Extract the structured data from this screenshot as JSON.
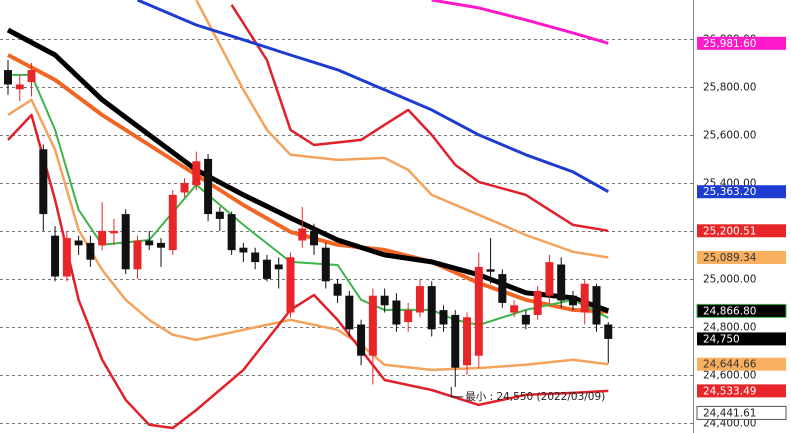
{
  "chart_data": {
    "type": "candlestick",
    "candles": {
      "open": [
        25870,
        25790,
        25820,
        25540,
        25180,
        25010,
        25160,
        25150,
        25140,
        25190,
        25270,
        25040,
        25160,
        25150,
        25120,
        25360,
        25390,
        25500,
        25280,
        25270,
        25130,
        25110,
        25080,
        25060,
        24860,
        25160,
        25200,
        25130,
        24980,
        24930,
        24810,
        24680,
        24930,
        24910,
        24820,
        24860,
        24970,
        24870,
        24850,
        24640,
        24680,
        25040,
        25020,
        24860,
        24850,
        24850,
        24930,
        25060,
        24930,
        24860,
        24970,
        24810
      ],
      "high": [
        25912,
        25850,
        25900,
        25560,
        25220,
        25200,
        25180,
        25180,
        25320,
        25250,
        25290,
        25180,
        25200,
        25170,
        25370,
        25420,
        25530,
        25520,
        25300,
        25280,
        25150,
        25130,
        25100,
        25090,
        25110,
        25300,
        25230,
        25150,
        25000,
        24950,
        24830,
        24960,
        24960,
        24940,
        24900,
        25000,
        24990,
        24890,
        24870,
        24860,
        25110,
        25170,
        25040,
        24910,
        24870,
        24970,
        25100,
        25090,
        24950,
        25000,
        24980,
        24820
      ],
      "low": [
        25767,
        25740,
        25760,
        25200,
        24990,
        24990,
        25100,
        25050,
        25120,
        25140,
        25020,
        25000,
        25120,
        25050,
        25100,
        25340,
        25370,
        25240,
        25200,
        25100,
        25070,
        25040,
        24990,
        24960,
        24840,
        25130,
        25100,
        24960,
        24900,
        24760,
        24640,
        24560,
        24860,
        24780,
        24780,
        24840,
        24760,
        24780,
        24550,
        24600,
        24630,
        24980,
        24880,
        24840,
        24790,
        24830,
        24900,
        24880,
        24870,
        24810,
        24780,
        24650
      ],
      "close": [
        25810,
        25810,
        25870,
        25270,
        25010,
        25170,
        25140,
        25080,
        25200,
        25200,
        25040,
        25160,
        25140,
        25130,
        25350,
        25400,
        25490,
        25270,
        25250,
        25120,
        25110,
        25070,
        25000,
        25040,
        25090,
        25210,
        25140,
        24990,
        24930,
        24790,
        24680,
        24930,
        24890,
        24810,
        24870,
        24970,
        24790,
        24810,
        24630,
        24840,
        25050,
        25030,
        24900,
        24890,
        24810,
        24950,
        25070,
        24910,
        24890,
        24980,
        24810,
        24750
      ],
      "up_color": "#e8262a",
      "down_color": "#111111",
      "last_close_label": "24,750"
    },
    "series": [
      {
        "color": "#f4a35c",
        "width": 2.5,
        "x": [
          16,
          18,
          20,
          22,
          24,
          28,
          32,
          34,
          36,
          40,
          44,
          48,
          51
        ],
        "values": [
          26162,
          25975,
          25788,
          25621,
          25517,
          25496,
          25504,
          25454,
          25350,
          25267,
          25183,
          25113,
          25089.34
        ],
        "value_labels": [
          null,
          null,
          null,
          null,
          null,
          null,
          null,
          null,
          null,
          null,
          null,
          null,
          "25,089.34"
        ],
        "tag_color": "#f8b060",
        "tag_text": "#333333"
      },
      {
        "color": "#f4a35c",
        "width": 2.5,
        "x": [
          0,
          2,
          4,
          6,
          8,
          10,
          12,
          14,
          16,
          20,
          24,
          28,
          30,
          32,
          36,
          40,
          44,
          48,
          51
        ],
        "values": [
          25683,
          25746,
          25538,
          25204,
          25037,
          24913,
          24829,
          24767,
          24746,
          24788,
          24829,
          24788,
          24725,
          24642,
          24621,
          24629,
          24642,
          24663,
          24644.66
        ],
        "value_labels": [
          null,
          null,
          null,
          null,
          null,
          null,
          null,
          null,
          null,
          null,
          null,
          null,
          null,
          null,
          null,
          null,
          null,
          null,
          "24,644.66"
        ],
        "tag_color": "#f8b060",
        "tag_text": "#333333"
      },
      {
        "color": "#e0202a",
        "width": 2.5,
        "x": [
          19,
          22,
          24,
          26,
          30,
          32,
          34,
          36,
          38,
          40,
          44,
          48,
          51
        ],
        "values": [
          26142,
          25912,
          25621,
          25558,
          25579,
          25642,
          25704,
          25600,
          25475,
          25404,
          25350,
          25225,
          25200.51
        ],
        "value_labels": [
          null,
          null,
          null,
          null,
          null,
          null,
          null,
          null,
          null,
          null,
          null,
          null,
          "25,200.51"
        ],
        "tag_color": "#e8262a",
        "tag_text": "#ffffff"
      },
      {
        "color": "#e0202a",
        "width": 2.5,
        "x": [
          0,
          2,
          4,
          6,
          8,
          10,
          12,
          14,
          16,
          20,
          24,
          26,
          28,
          30,
          32,
          36,
          40,
          44,
          48,
          51
        ],
        "values": [
          25579,
          25683,
          25329,
          24913,
          24663,
          24496,
          24392,
          24379,
          24454,
          24621,
          24871,
          24933,
          24829,
          24704,
          24579,
          24537,
          24475,
          24517,
          24525,
          24533.49
        ],
        "value_labels": [
          null,
          null,
          null,
          null,
          null,
          null,
          null,
          null,
          null,
          null,
          null,
          null,
          null,
          null,
          null,
          null,
          null,
          null,
          null,
          "24,533.49"
        ],
        "tag_color": "#e8262a",
        "tag_text": "#ffffff"
      },
      {
        "color": "#ff19c8",
        "width": 3,
        "x": [
          36,
          40,
          44,
          48,
          51
        ],
        "values": [
          26162,
          26129,
          26079,
          26025,
          25981.6
        ],
        "value_labels": [
          null,
          null,
          null,
          null,
          "25,981.60"
        ],
        "tag_color": "#ff19c8",
        "tag_text": "#ffffff"
      },
      {
        "color": "#1e3cd2",
        "width": 3,
        "x": [
          11,
          16,
          20,
          24,
          28,
          32,
          36,
          40,
          44,
          48,
          51
        ],
        "values": [
          26162,
          26058,
          25996,
          25933,
          25871,
          25788,
          25704,
          25600,
          25517,
          25446,
          25363.2
        ],
        "value_labels": [
          null,
          null,
          null,
          null,
          null,
          null,
          null,
          null,
          null,
          null,
          "25,363.20"
        ],
        "tag_color": "#1e3cd2",
        "tag_text": "#ffffff"
      },
      {
        "color": "#f26522",
        "width": 4,
        "x": [
          0,
          4,
          8,
          12,
          16,
          20,
          24,
          28,
          32,
          36,
          40,
          44,
          48,
          51
        ],
        "values": [
          25933,
          25829,
          25683,
          25558,
          25433,
          25308,
          25196,
          25142,
          25121,
          25071,
          24983,
          24913,
          24871,
          24863
        ],
        "value_labels": null
      },
      {
        "color": "#000000",
        "width": 5,
        "x": [
          0,
          4,
          8,
          12,
          16,
          20,
          24,
          28,
          32,
          36,
          40,
          44,
          48,
          51
        ],
        "values": [
          26037,
          25933,
          25746,
          25600,
          25454,
          25350,
          25254,
          25162,
          25100,
          25071,
          25017,
          24942,
          24921,
          24866.8
        ],
        "value_labels": [
          null,
          null,
          null,
          null,
          null,
          null,
          null,
          null,
          null,
          null,
          null,
          null,
          null,
          "24,866.80"
        ],
        "tag_color": "#000000",
        "tag_text": "#ffffff",
        "tag_border": "#3cb44b"
      },
      {
        "color": "#3cb44b",
        "width": 2,
        "x": [
          0,
          2,
          4,
          6,
          8,
          12,
          16,
          20,
          24,
          28,
          30,
          32,
          36,
          38,
          40,
          44,
          48,
          51
        ],
        "values": [
          25850,
          25850,
          25621,
          25288,
          25142,
          25162,
          25392,
          25225,
          25071,
          25058,
          24913,
          24871,
          24871,
          24829,
          24808,
          24871,
          24913,
          24838
        ],
        "value_labels": null
      }
    ],
    "markers": [
      {
        "value": 24441.61,
        "label": "24,441.61"
      }
    ],
    "annotation": {
      "text": "最小 : 24,550 (2022/03/09)",
      "x": 38,
      "value": 24550
    },
    "ylim": [
      24358,
      26162
    ],
    "yticks": [
      {
        "value": 24400,
        "label": "24,400.00"
      },
      {
        "value": 24600,
        "label": "24,600.00"
      },
      {
        "value": 24800,
        "label": "24,800.00"
      },
      {
        "value": 25000,
        "label": "25,000.00"
      },
      {
        "value": 25200,
        "label": "25,200.00"
      },
      {
        "value": 25400,
        "label": "25,400.00"
      },
      {
        "value": 25600,
        "label": "25,600.00"
      },
      {
        "value": 25800,
        "label": "25,800.00"
      },
      {
        "value": 26000,
        "label": "26,000.00"
      }
    ],
    "grid": true
  }
}
